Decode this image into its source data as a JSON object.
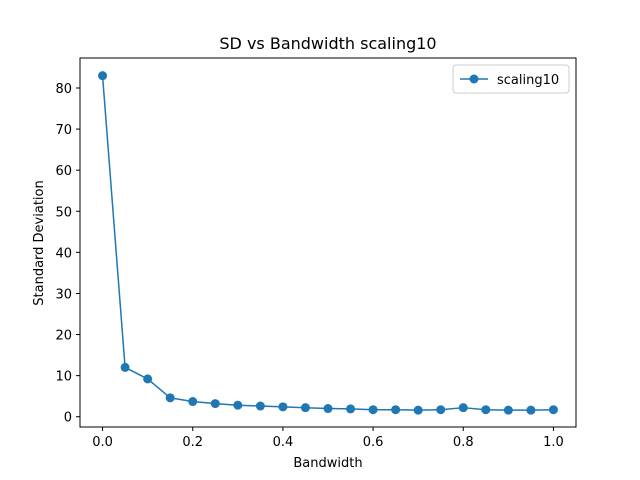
{
  "chart_data": {
    "type": "line",
    "title": "SD vs Bandwidth scaling10",
    "xlabel": "Bandwidth",
    "ylabel": "Standard Deviation",
    "xlim": [
      -0.05,
      1.05
    ],
    "ylim": [
      -2.5,
      87.3
    ],
    "xticks": [
      0.0,
      0.2,
      0.4,
      0.6,
      0.8,
      1.0
    ],
    "xtick_labels": [
      "0.0",
      "0.2",
      "0.4",
      "0.6",
      "0.8",
      "1.0"
    ],
    "yticks": [
      0,
      10,
      20,
      30,
      40,
      50,
      60,
      70,
      80
    ],
    "ytick_labels": [
      "0",
      "10",
      "20",
      "30",
      "40",
      "50",
      "60",
      "70",
      "80"
    ],
    "grid": false,
    "legend_position": "top-right",
    "series": [
      {
        "name": "scaling10",
        "color": "#1f77b4",
        "marker": "circle",
        "x": [
          0.0,
          0.05,
          0.1,
          0.15,
          0.2,
          0.25,
          0.3,
          0.35,
          0.4,
          0.45,
          0.5,
          0.55,
          0.6,
          0.65,
          0.7,
          0.75,
          0.8,
          0.85,
          0.9,
          0.95,
          1.0
        ],
        "y": [
          83.0,
          12.0,
          9.2,
          4.6,
          3.7,
          3.2,
          2.8,
          2.6,
          2.4,
          2.2,
          2.0,
          1.9,
          1.7,
          1.7,
          1.6,
          1.7,
          2.2,
          1.7,
          1.6,
          1.6,
          1.7
        ]
      }
    ]
  }
}
